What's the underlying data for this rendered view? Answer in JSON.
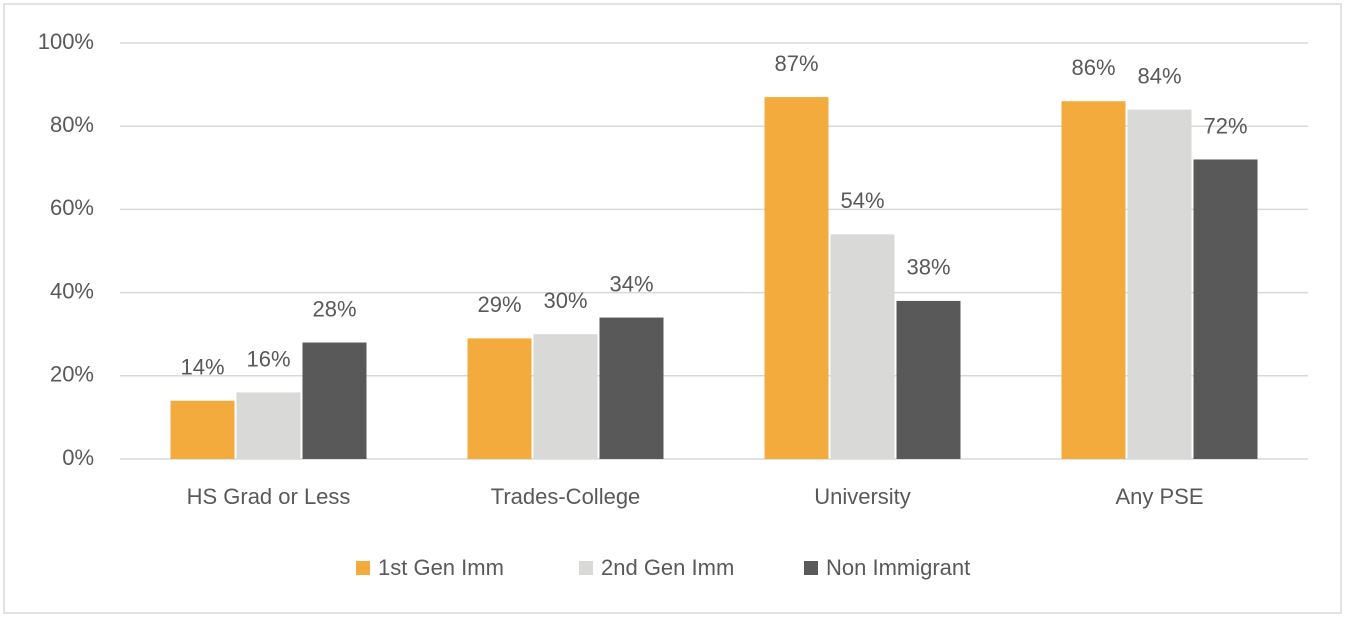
{
  "chart_data": {
    "type": "bar",
    "categories": [
      "HS Grad or Less",
      "Trades-College",
      "University",
      "Any PSE"
    ],
    "series": [
      {
        "name": "1st Gen Imm",
        "color": "#f2ab3c",
        "values": [
          14,
          29,
          87,
          86
        ],
        "value_labels": [
          "14%",
          "29%",
          "87%",
          "86%"
        ]
      },
      {
        "name": "2nd Gen Imm",
        "color": "#d9d9d7",
        "values": [
          16,
          30,
          54,
          84
        ],
        "value_labels": [
          "16%",
          "30%",
          "54%",
          "84%"
        ]
      },
      {
        "name": "Non Immigrant",
        "color": "#595959",
        "values": [
          28,
          34,
          38,
          72
        ],
        "value_labels": [
          "28%",
          "34%",
          "38%",
          "72%"
        ]
      }
    ],
    "ylim": [
      0,
      100
    ],
    "yticks": [
      {
        "value": 0,
        "label": "0%"
      },
      {
        "value": 20,
        "label": "20%"
      },
      {
        "value": 40,
        "label": "40%"
      },
      {
        "value": 60,
        "label": "60%"
      },
      {
        "value": 80,
        "label": "80%"
      },
      {
        "value": 100,
        "label": "100%"
      }
    ],
    "grid": true,
    "legend": "bottom"
  }
}
